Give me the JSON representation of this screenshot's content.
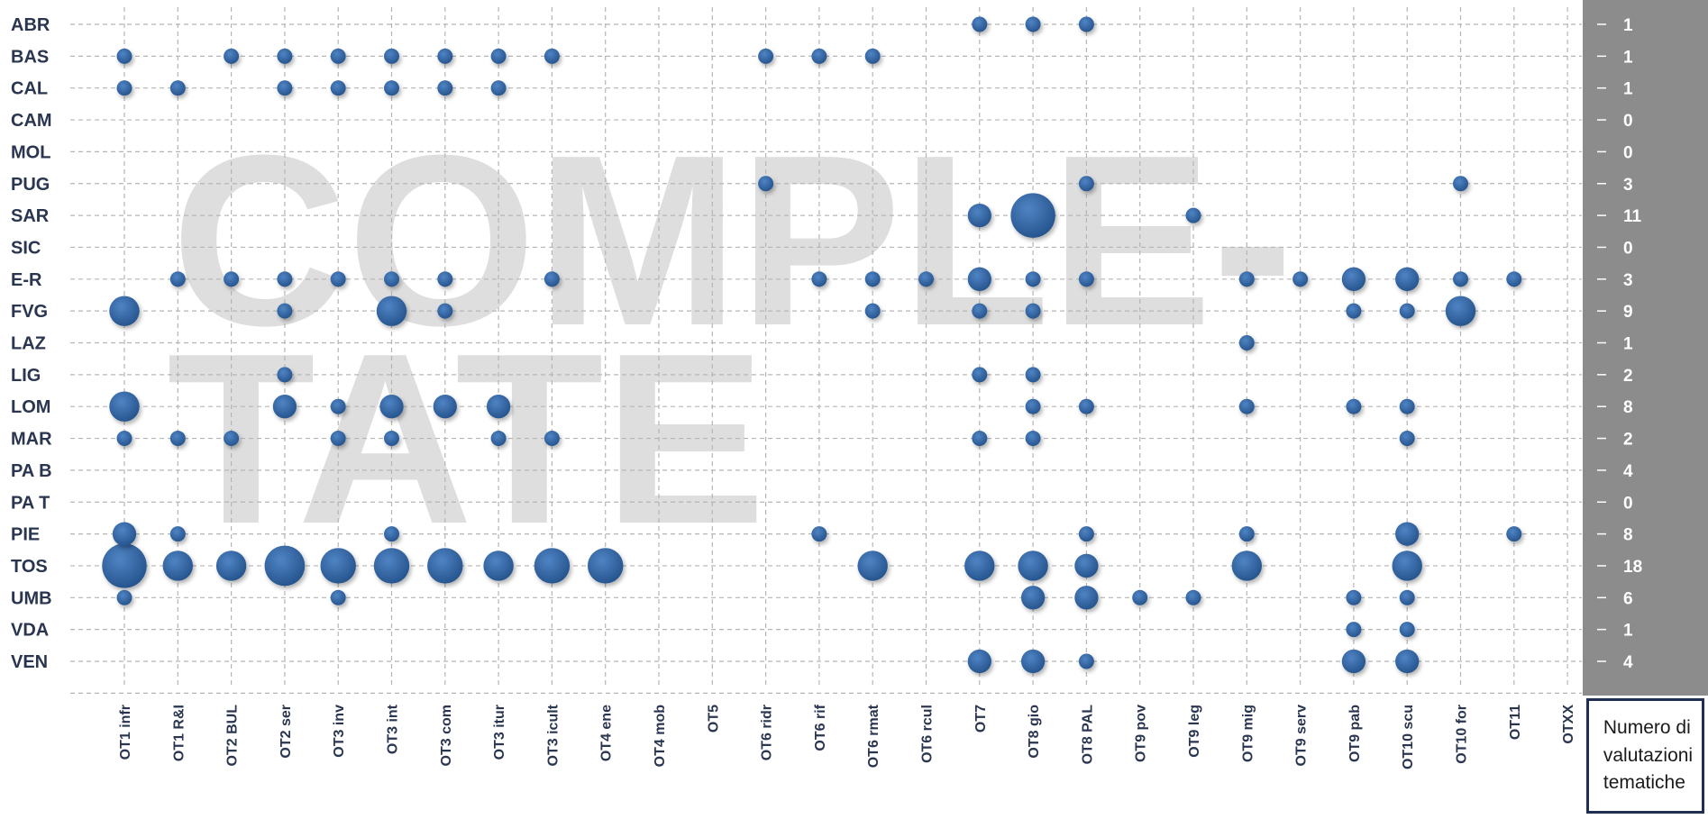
{
  "chart_data": {
    "type": "scatter",
    "watermark": [
      "COMPLE-",
      "TATE"
    ],
    "rows": [
      "ABR",
      "BAS",
      "CAL",
      "CAM",
      "MOL",
      "PUG",
      "SAR",
      "SIC",
      "E-R",
      "FVG",
      "LAZ",
      "LIG",
      "LOM",
      "MAR",
      "PA B",
      "PA T",
      "PIE",
      "TOS",
      "UMB",
      "VDA",
      "VEN"
    ],
    "columns": [
      "OT1 infr",
      "OT1 R&I",
      "OT2 BUL",
      "OT2 ser",
      "OT3 inv",
      "OT3 int",
      "OT3 com",
      "OT3 itur",
      "OT3 icult",
      "OT4 ene",
      "OT4 mob",
      "OT5",
      "OT6 ridr",
      "OT6 rif",
      "OT6 rmat",
      "OT6 rcul",
      "OT7",
      "OT8 gio",
      "OT8 PAL",
      "OT9 pov",
      "OT9 leg",
      "OT9 mig",
      "OT9 serv",
      "OT9 pab",
      "OT10 scu",
      "OT10 for",
      "OT11",
      "OTXX"
    ],
    "counts": [
      "1",
      "1",
      "1",
      "0",
      "0",
      "3",
      "11",
      "0",
      "3",
      "9",
      "1",
      "2",
      "8",
      "2",
      "4",
      "0",
      "8",
      "18",
      "6",
      "1",
      "4"
    ],
    "count_legend": [
      "Numero di",
      "valutazioni",
      "tematiche"
    ],
    "size_unit": "bubble size = number of evaluations (1 = small)",
    "points": [
      [
        "ABR",
        "OT7",
        1
      ],
      [
        "ABR",
        "OT8 gio",
        1
      ],
      [
        "ABR",
        "OT8 PAL",
        1
      ],
      [
        "BAS",
        "OT1 infr",
        1
      ],
      [
        "BAS",
        "OT2 BUL",
        1
      ],
      [
        "BAS",
        "OT2 ser",
        1
      ],
      [
        "BAS",
        "OT3 inv",
        1
      ],
      [
        "BAS",
        "OT3 int",
        1
      ],
      [
        "BAS",
        "OT3 com",
        1
      ],
      [
        "BAS",
        "OT3 itur",
        1
      ],
      [
        "BAS",
        "OT3 icult",
        1
      ],
      [
        "BAS",
        "OT6 ridr",
        1
      ],
      [
        "BAS",
        "OT6 rif",
        1
      ],
      [
        "BAS",
        "OT6 rmat",
        1
      ],
      [
        "CAL",
        "OT1 infr",
        1
      ],
      [
        "CAL",
        "OT1 R&I",
        1
      ],
      [
        "CAL",
        "OT2 ser",
        1
      ],
      [
        "CAL",
        "OT3 inv",
        1
      ],
      [
        "CAL",
        "OT3 int",
        1
      ],
      [
        "CAL",
        "OT3 com",
        1
      ],
      [
        "CAL",
        "OT3 itur",
        1
      ],
      [
        "PUG",
        "OT6 ridr",
        1
      ],
      [
        "PUG",
        "OT8 PAL",
        1
      ],
      [
        "PUG",
        "OT10 for",
        1
      ],
      [
        "SAR",
        "OT7",
        2
      ],
      [
        "SAR",
        "OT8 gio",
        6
      ],
      [
        "SAR",
        "OT9 leg",
        1
      ],
      [
        "E-R",
        "OT1 R&I",
        1
      ],
      [
        "E-R",
        "OT2 BUL",
        1
      ],
      [
        "E-R",
        "OT2 ser",
        1
      ],
      [
        "E-R",
        "OT3 inv",
        1
      ],
      [
        "E-R",
        "OT3 int",
        1
      ],
      [
        "E-R",
        "OT3 com",
        1
      ],
      [
        "E-R",
        "OT3 icult",
        1
      ],
      [
        "E-R",
        "OT6 rif",
        1
      ],
      [
        "E-R",
        "OT6 rmat",
        1
      ],
      [
        "E-R",
        "OT6 rcul",
        1
      ],
      [
        "E-R",
        "OT7",
        2
      ],
      [
        "E-R",
        "OT8 gio",
        1
      ],
      [
        "E-R",
        "OT8 PAL",
        1
      ],
      [
        "E-R",
        "OT9 mig",
        1
      ],
      [
        "E-R",
        "OT9 serv",
        1
      ],
      [
        "E-R",
        "OT9 pab",
        2
      ],
      [
        "E-R",
        "OT10 scu",
        2
      ],
      [
        "E-R",
        "OT10 for",
        1
      ],
      [
        "E-R",
        "OT11",
        1
      ],
      [
        "FVG",
        "OT1 infr",
        3
      ],
      [
        "FVG",
        "OT2 ser",
        1
      ],
      [
        "FVG",
        "OT3 int",
        3
      ],
      [
        "FVG",
        "OT3 com",
        1
      ],
      [
        "FVG",
        "OT6 rmat",
        1
      ],
      [
        "FVG",
        "OT7",
        1
      ],
      [
        "FVG",
        "OT8 gio",
        1
      ],
      [
        "FVG",
        "OT9 pab",
        1
      ],
      [
        "FVG",
        "OT10 scu",
        1
      ],
      [
        "FVG",
        "OT10 for",
        3
      ],
      [
        "LAZ",
        "OT9 mig",
        1
      ],
      [
        "LIG",
        "OT2 ser",
        1
      ],
      [
        "LIG",
        "OT7",
        1
      ],
      [
        "LIG",
        "OT8 gio",
        1
      ],
      [
        "LOM",
        "OT1 infr",
        3
      ],
      [
        "LOM",
        "OT2 ser",
        2
      ],
      [
        "LOM",
        "OT3 inv",
        1
      ],
      [
        "LOM",
        "OT3 int",
        2
      ],
      [
        "LOM",
        "OT3 com",
        2
      ],
      [
        "LOM",
        "OT3 itur",
        2
      ],
      [
        "LOM",
        "OT8 gio",
        1
      ],
      [
        "LOM",
        "OT8 PAL",
        1
      ],
      [
        "LOM",
        "OT9 mig",
        1
      ],
      [
        "LOM",
        "OT9 pab",
        1
      ],
      [
        "LOM",
        "OT10 scu",
        1
      ],
      [
        "MAR",
        "OT1 infr",
        1
      ],
      [
        "MAR",
        "OT1 R&I",
        1
      ],
      [
        "MAR",
        "OT2 BUL",
        1
      ],
      [
        "MAR",
        "OT3 inv",
        1
      ],
      [
        "MAR",
        "OT3 int",
        1
      ],
      [
        "MAR",
        "OT3 itur",
        1
      ],
      [
        "MAR",
        "OT3 icult",
        1
      ],
      [
        "MAR",
        "OT7",
        1
      ],
      [
        "MAR",
        "OT8 gio",
        1
      ],
      [
        "MAR",
        "OT10 scu",
        1
      ],
      [
        "PIE",
        "OT1 infr",
        2
      ],
      [
        "PIE",
        "OT1 R&I",
        1
      ],
      [
        "PIE",
        "OT3 int",
        1
      ],
      [
        "PIE",
        "OT6 rif",
        1
      ],
      [
        "PIE",
        "OT8 PAL",
        1
      ],
      [
        "PIE",
        "OT9 mig",
        1
      ],
      [
        "PIE",
        "OT10 scu",
        2
      ],
      [
        "PIE",
        "OT11",
        1
      ],
      [
        "TOS",
        "OT1 infr",
        6
      ],
      [
        "TOS",
        "OT1 R&I",
        3
      ],
      [
        "TOS",
        "OT2 BUL",
        3
      ],
      [
        "TOS",
        "OT2 ser",
        5
      ],
      [
        "TOS",
        "OT3 inv",
        4
      ],
      [
        "TOS",
        "OT3 int",
        4
      ],
      [
        "TOS",
        "OT3 com",
        4
      ],
      [
        "TOS",
        "OT3 itur",
        3
      ],
      [
        "TOS",
        "OT3 icult",
        4
      ],
      [
        "TOS",
        "OT4 ene",
        4
      ],
      [
        "TOS",
        "OT6 rmat",
        3
      ],
      [
        "TOS",
        "OT7",
        3
      ],
      [
        "TOS",
        "OT8 gio",
        3
      ],
      [
        "TOS",
        "OT8 PAL",
        2
      ],
      [
        "TOS",
        "OT9 mig",
        3
      ],
      [
        "TOS",
        "OT10 scu",
        3
      ],
      [
        "UMB",
        "OT1 infr",
        1
      ],
      [
        "UMB",
        "OT3 inv",
        1
      ],
      [
        "UMB",
        "OT8 gio",
        2
      ],
      [
        "UMB",
        "OT8 PAL",
        2
      ],
      [
        "UMB",
        "OT9 pov",
        1
      ],
      [
        "UMB",
        "OT9 leg",
        1
      ],
      [
        "UMB",
        "OT9 pab",
        1
      ],
      [
        "UMB",
        "OT10 scu",
        1
      ],
      [
        "VDA",
        "OT9 pab",
        1
      ],
      [
        "VDA",
        "OT10 scu",
        1
      ],
      [
        "VEN",
        "OT7",
        2
      ],
      [
        "VEN",
        "OT8 gio",
        2
      ],
      [
        "VEN",
        "OT8 PAL",
        1
      ],
      [
        "VEN",
        "OT9 pab",
        2
      ],
      [
        "VEN",
        "OT10 scu",
        2
      ]
    ],
    "colors": {
      "bubble": "#2e5f9a",
      "bubble_highlight": "#4f84c4",
      "grid": "#b5b5b5",
      "count_panel": "#8c8c8c",
      "label": "#2a3550"
    },
    "grid": true
  }
}
